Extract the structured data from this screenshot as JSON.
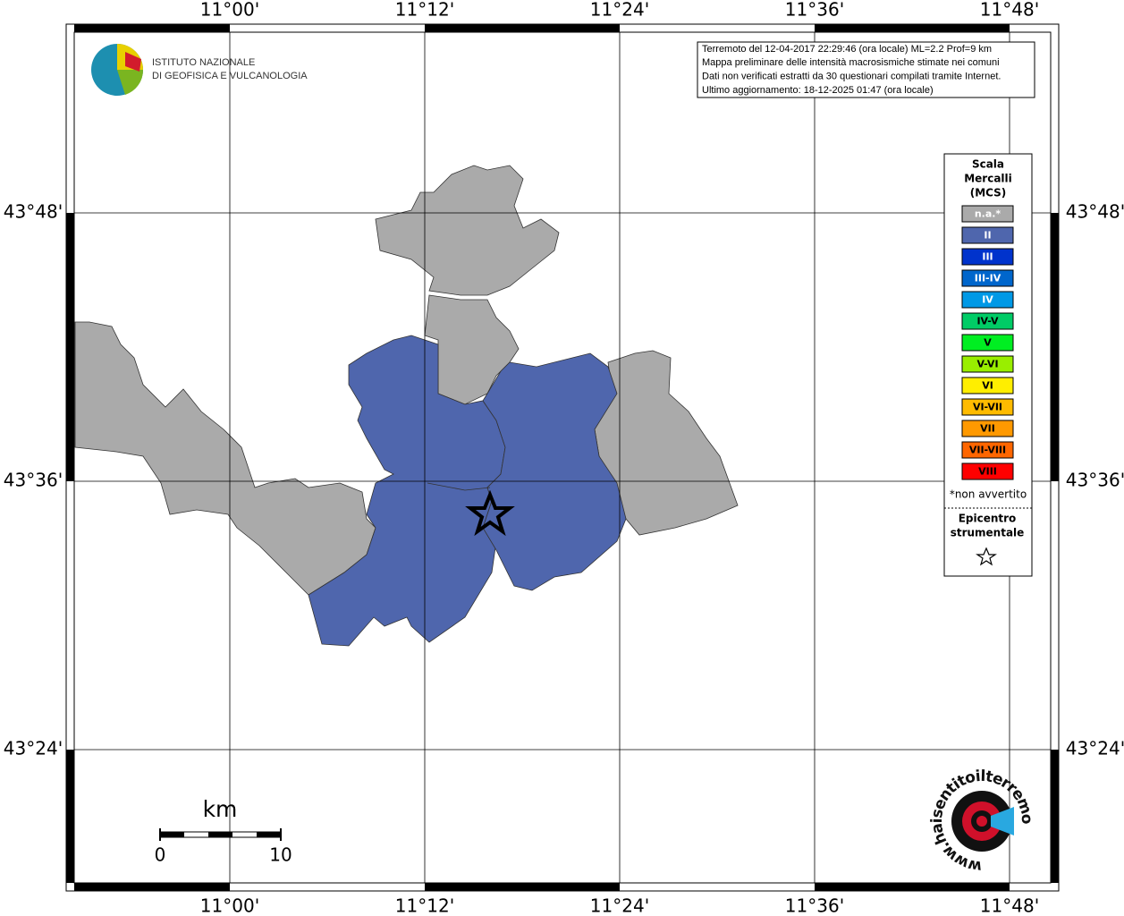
{
  "map": {
    "lon_labels": [
      "11°00'",
      "11°12'",
      "11°24'",
      "11°36'",
      "11°48'"
    ],
    "lat_labels": [
      "43°48'",
      "43°36'",
      "43°24'"
    ],
    "info": [
      "Terremoto del 12-04-2017 22:29:46 (ora locale) ML=2.2 Prof=9 km",
      "Mappa preliminare delle intensità macrosismiche stimate nei comuni",
      "Dati non verificati estratti da 30 questionari compilati tramite Internet.",
      "Ultimo aggiornamento: 18-12-2025 01:47 (ora locale)"
    ],
    "logo": [
      "ISTITUTO NAZIONALE",
      "DI GEOFISICA E VULCANOLOGIA"
    ],
    "legend": {
      "title": [
        "Scala",
        "Mercalli",
        "(MCS)"
      ],
      "classes": [
        {
          "label": "n.a.*",
          "color": "#aaaaaa",
          "text_color": "#ffffff"
        },
        {
          "label": "II",
          "color": "#4f66ad",
          "text_color": "#ffffff"
        },
        {
          "label": "III",
          "color": "#0033cc",
          "text_color": "#ffffff"
        },
        {
          "label": "III-IV",
          "color": "#0066cc",
          "text_color": "#ffffff"
        },
        {
          "label": "IV",
          "color": "#0099e6",
          "text_color": "#ffffff"
        },
        {
          "label": "IV-V",
          "color": "#00cc66",
          "text_color": "#000000"
        },
        {
          "label": "V",
          "color": "#00ee22",
          "text_color": "#000000"
        },
        {
          "label": "V-VI",
          "color": "#99ee00",
          "text_color": "#000000"
        },
        {
          "label": "VI",
          "color": "#ffee00",
          "text_color": "#000000"
        },
        {
          "label": "VI-VII",
          "color": "#ffbb00",
          "text_color": "#000000"
        },
        {
          "label": "VII",
          "color": "#ff9900",
          "text_color": "#000000"
        },
        {
          "label": "VII-VIII",
          "color": "#ff6600",
          "text_color": "#000000"
        },
        {
          "label": "VIII",
          "color": "#ff0000",
          "text_color": "#000000"
        }
      ],
      "note": "*non avvertito",
      "epicenter": [
        "Epicentro",
        "strumentale"
      ]
    },
    "scale": {
      "unit": "km",
      "labels": [
        "0",
        "10"
      ]
    },
    "site": "www.haisentitoilterremoto.it"
  }
}
